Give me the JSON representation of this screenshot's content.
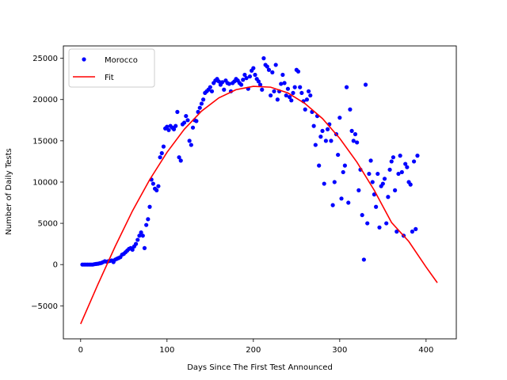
{
  "chart_data": {
    "type": "scatter",
    "title": "",
    "xlabel": "Days Since The First Test Announced",
    "ylabel": "Number of Daily Tests",
    "xlim": [
      -20,
      435
    ],
    "ylim": [
      -9000,
      26500
    ],
    "xticks": [
      0,
      100,
      200,
      300,
      400
    ],
    "yticks": [
      -5000,
      0,
      5000,
      10000,
      15000,
      20000,
      25000
    ],
    "grid": false,
    "legend_position": "top-left",
    "series": [
      {
        "name": "Morocco",
        "kind": "scatter",
        "color": "#0000ff",
        "points": [
          [
            2,
            0
          ],
          [
            4,
            0
          ],
          [
            6,
            0
          ],
          [
            8,
            0
          ],
          [
            10,
            0
          ],
          [
            12,
            0
          ],
          [
            14,
            0
          ],
          [
            16,
            50
          ],
          [
            18,
            80
          ],
          [
            20,
            100
          ],
          [
            22,
            150
          ],
          [
            24,
            200
          ],
          [
            26,
            300
          ],
          [
            28,
            400
          ],
          [
            30,
            350
          ],
          [
            32,
            400
          ],
          [
            34,
            450
          ],
          [
            36,
            500
          ],
          [
            38,
            300
          ],
          [
            40,
            600
          ],
          [
            42,
            700
          ],
          [
            44,
            800
          ],
          [
            46,
            900
          ],
          [
            48,
            1200
          ],
          [
            50,
            1300
          ],
          [
            52,
            1500
          ],
          [
            54,
            1700
          ],
          [
            56,
            1900
          ],
          [
            58,
            2000
          ],
          [
            60,
            1800
          ],
          [
            62,
            2200
          ],
          [
            64,
            2500
          ],
          [
            66,
            3000
          ],
          [
            68,
            3500
          ],
          [
            70,
            3900
          ],
          [
            72,
            3500
          ],
          [
            74,
            2000
          ],
          [
            76,
            4800
          ],
          [
            78,
            5500
          ],
          [
            80,
            7000
          ],
          [
            82,
            10300
          ],
          [
            84,
            9800
          ],
          [
            86,
            9200
          ],
          [
            88,
            9000
          ],
          [
            90,
            9500
          ],
          [
            92,
            13000
          ],
          [
            94,
            13500
          ],
          [
            96,
            14300
          ],
          [
            98,
            16500
          ],
          [
            100,
            16700
          ],
          [
            102,
            16300
          ],
          [
            104,
            16800
          ],
          [
            106,
            16600
          ],
          [
            108,
            16400
          ],
          [
            110,
            16800
          ],
          [
            112,
            18500
          ],
          [
            114,
            13000
          ],
          [
            116,
            12600
          ],
          [
            118,
            17000
          ],
          [
            120,
            17200
          ],
          [
            122,
            18000
          ],
          [
            124,
            17500
          ],
          [
            126,
            15000
          ],
          [
            128,
            14500
          ],
          [
            130,
            16600
          ],
          [
            132,
            17500
          ],
          [
            134,
            17400
          ],
          [
            136,
            18500
          ],
          [
            138,
            19000
          ],
          [
            140,
            19500
          ],
          [
            142,
            20000
          ],
          [
            144,
            20800
          ],
          [
            146,
            21000
          ],
          [
            148,
            21200
          ],
          [
            150,
            21500
          ],
          [
            152,
            21000
          ],
          [
            154,
            22000
          ],
          [
            156,
            22300
          ],
          [
            158,
            22500
          ],
          [
            160,
            22200
          ],
          [
            162,
            21800
          ],
          [
            164,
            22100
          ],
          [
            166,
            21200
          ],
          [
            168,
            22300
          ],
          [
            170,
            22000
          ],
          [
            172,
            21900
          ],
          [
            174,
            21000
          ],
          [
            176,
            22000
          ],
          [
            178,
            22200
          ],
          [
            180,
            22500
          ],
          [
            182,
            22300
          ],
          [
            184,
            22000
          ],
          [
            186,
            21800
          ],
          [
            188,
            22400
          ],
          [
            190,
            23000
          ],
          [
            192,
            22600
          ],
          [
            194,
            21300
          ],
          [
            196,
            22800
          ],
          [
            198,
            23500
          ],
          [
            200,
            23800
          ],
          [
            202,
            23000
          ],
          [
            204,
            22500
          ],
          [
            206,
            22200
          ],
          [
            208,
            21800
          ],
          [
            210,
            21200
          ],
          [
            212,
            25000
          ],
          [
            214,
            24200
          ],
          [
            216,
            24000
          ],
          [
            218,
            23600
          ],
          [
            220,
            20500
          ],
          [
            222,
            23300
          ],
          [
            224,
            21000
          ],
          [
            226,
            24200
          ],
          [
            228,
            20000
          ],
          [
            230,
            21000
          ],
          [
            232,
            21900
          ],
          [
            234,
            23000
          ],
          [
            236,
            22000
          ],
          [
            238,
            20500
          ],
          [
            240,
            21300
          ],
          [
            242,
            20300
          ],
          [
            244,
            19900
          ],
          [
            246,
            20800
          ],
          [
            248,
            21500
          ],
          [
            250,
            23600
          ],
          [
            252,
            23400
          ],
          [
            254,
            21500
          ],
          [
            256,
            20800
          ],
          [
            258,
            19800
          ],
          [
            260,
            18800
          ],
          [
            262,
            20000
          ],
          [
            264,
            21000
          ],
          [
            266,
            20500
          ],
          [
            268,
            18500
          ],
          [
            270,
            16800
          ],
          [
            272,
            14500
          ],
          [
            274,
            18000
          ],
          [
            276,
            12000
          ],
          [
            278,
            15500
          ],
          [
            280,
            16200
          ],
          [
            282,
            9800
          ],
          [
            284,
            15000
          ],
          [
            286,
            16400
          ],
          [
            288,
            17000
          ],
          [
            290,
            15000
          ],
          [
            292,
            7200
          ],
          [
            294,
            10000
          ],
          [
            296,
            15800
          ],
          [
            298,
            13300
          ],
          [
            300,
            17800
          ],
          [
            302,
            8000
          ],
          [
            304,
            11200
          ],
          [
            306,
            12000
          ],
          [
            308,
            21500
          ],
          [
            310,
            7500
          ],
          [
            312,
            18800
          ],
          [
            314,
            16200
          ],
          [
            316,
            15000
          ],
          [
            318,
            15800
          ],
          [
            320,
            14800
          ],
          [
            322,
            9000
          ],
          [
            324,
            11500
          ],
          [
            326,
            6000
          ],
          [
            328,
            600
          ],
          [
            330,
            21800
          ],
          [
            332,
            5000
          ],
          [
            334,
            11000
          ],
          [
            336,
            12600
          ],
          [
            338,
            10000
          ],
          [
            340,
            8500
          ],
          [
            342,
            7000
          ],
          [
            344,
            11000
          ],
          [
            346,
            4500
          ],
          [
            348,
            9500
          ],
          [
            350,
            9800
          ],
          [
            352,
            10400
          ],
          [
            354,
            5000
          ],
          [
            356,
            8200
          ],
          [
            358,
            11500
          ],
          [
            360,
            12500
          ],
          [
            362,
            13000
          ],
          [
            364,
            9000
          ],
          [
            366,
            4000
          ],
          [
            368,
            11000
          ],
          [
            370,
            13200
          ],
          [
            372,
            11200
          ],
          [
            374,
            3500
          ],
          [
            376,
            12200
          ],
          [
            378,
            11800
          ],
          [
            380,
            10000
          ],
          [
            382,
            9700
          ],
          [
            384,
            4000
          ],
          [
            386,
            12500
          ],
          [
            388,
            4300
          ],
          [
            390,
            13200
          ]
        ]
      },
      {
        "name": "Fit",
        "kind": "line",
        "color": "#ff0000",
        "points": [
          [
            0,
            -7200
          ],
          [
            20,
            -2400
          ],
          [
            40,
            2200
          ],
          [
            60,
            6500
          ],
          [
            80,
            10300
          ],
          [
            100,
            13600
          ],
          [
            120,
            16400
          ],
          [
            140,
            18600
          ],
          [
            160,
            20200
          ],
          [
            180,
            21200
          ],
          [
            200,
            21600
          ],
          [
            220,
            21500
          ],
          [
            240,
            20800
          ],
          [
            260,
            19500
          ],
          [
            280,
            17700
          ],
          [
            300,
            15300
          ],
          [
            320,
            12400
          ],
          [
            340,
            9000
          ],
          [
            360,
            5100
          ],
          [
            380,
            2800
          ],
          [
            400,
            -300
          ],
          [
            413,
            -2200
          ]
        ]
      }
    ]
  }
}
